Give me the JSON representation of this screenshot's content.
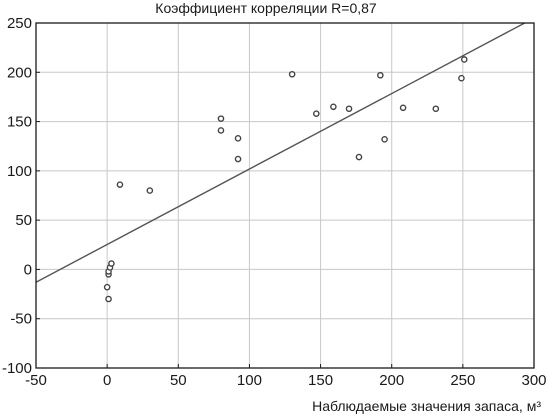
{
  "chart_data": {
    "type": "scatter",
    "title": "Коэффициент корреляции R=0,87",
    "xlabel": "Наблюдаемые значения запаса, м³",
    "ylabel": "",
    "xlim": [
      -50,
      300
    ],
    "ylim": [
      -100,
      250
    ],
    "x_ticks": [
      -50,
      0,
      50,
      100,
      150,
      200,
      250,
      300
    ],
    "y_ticks": [
      -100,
      -50,
      0,
      50,
      100,
      150,
      200,
      250
    ],
    "x_tick_labels": [
      "-50",
      "0",
      "50",
      "100",
      "150",
      "200",
      "250",
      "300"
    ],
    "y_tick_labels": [
      "-100",
      "-50",
      "0",
      "50",
      "100",
      "150",
      "200",
      "250"
    ],
    "grid": true,
    "series": [
      {
        "points": [
          [
            1,
            -30
          ],
          [
            0,
            -18
          ],
          [
            1,
            -5
          ],
          [
            1,
            -2
          ],
          [
            2,
            2
          ],
          [
            3,
            6
          ],
          [
            9,
            86
          ],
          [
            30,
            80
          ],
          [
            80,
            153
          ],
          [
            80,
            141
          ],
          [
            92,
            133
          ],
          [
            92,
            112
          ],
          [
            130,
            198
          ],
          [
            147,
            158
          ],
          [
            159,
            165
          ],
          [
            170,
            163
          ],
          [
            177,
            114
          ],
          [
            192,
            197
          ],
          [
            195,
            132
          ],
          [
            208,
            164
          ],
          [
            231,
            163
          ],
          [
            249,
            194
          ],
          [
            251,
            213
          ]
        ]
      }
    ],
    "fit_line": {
      "x": [
        -50,
        300
      ],
      "y": [
        -13,
        255
      ]
    },
    "colors": {
      "marker": "#444444",
      "line": "#555555",
      "grid": "#c8c8c8",
      "axis": "#1a1a1a"
    }
  }
}
